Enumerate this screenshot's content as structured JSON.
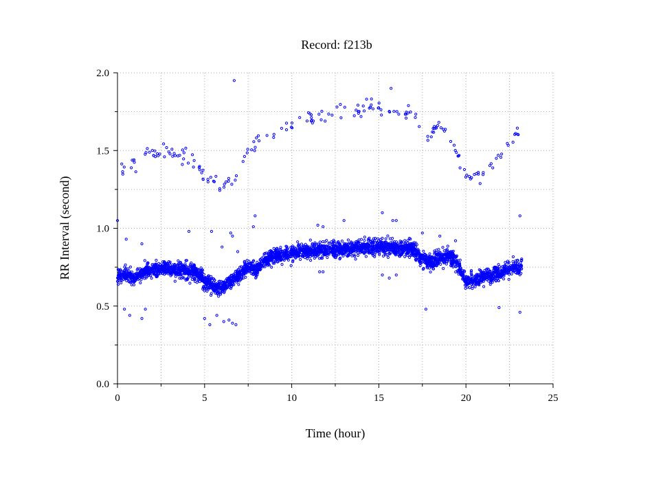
{
  "chart_data": {
    "type": "scatter",
    "title": "Record:  f213b",
    "xlabel": "Time (hour)",
    "ylabel": "RR Interval (second)",
    "xlim": [
      0,
      25
    ],
    "ylim": [
      0,
      2
    ],
    "x_ticks": [
      0,
      5,
      10,
      15,
      20,
      25
    ],
    "x_tick_labels": [
      "0",
      "5",
      "10",
      "15",
      "20",
      "25"
    ],
    "x_minor_ticks": [
      2.5,
      7.5,
      12.5,
      17.5,
      22.5
    ],
    "y_ticks": [
      0,
      0.5,
      1.0,
      1.5,
      2.0
    ],
    "y_tick_labels": [
      "0.0",
      "0.5",
      "1.0",
      "1.5",
      "2.0"
    ],
    "y_minor_ticks": [
      0.25,
      0.75,
      1.25,
      1.75
    ],
    "grid": true,
    "legend": "none",
    "marker_color": "#0000ff",
    "series": [
      {
        "trend": [
          [
            0.0,
            0.69
          ],
          [
            0.5,
            0.7
          ],
          [
            1.0,
            0.68
          ],
          [
            1.5,
            0.72
          ],
          [
            2.0,
            0.74
          ],
          [
            2.5,
            0.74
          ],
          [
            3.0,
            0.75
          ],
          [
            3.5,
            0.74
          ],
          [
            4.0,
            0.72
          ],
          [
            4.5,
            0.72
          ],
          [
            5.0,
            0.66
          ],
          [
            5.5,
            0.62
          ],
          [
            6.0,
            0.62
          ],
          [
            6.5,
            0.66
          ],
          [
            7.0,
            0.7
          ],
          [
            7.5,
            0.76
          ],
          [
            8.0,
            0.74
          ],
          [
            8.5,
            0.8
          ],
          [
            9.0,
            0.82
          ],
          [
            9.5,
            0.83
          ],
          [
            10.0,
            0.84
          ],
          [
            10.5,
            0.85
          ],
          [
            11.0,
            0.85
          ],
          [
            11.5,
            0.86
          ],
          [
            12.0,
            0.86
          ],
          [
            12.5,
            0.86
          ],
          [
            13.0,
            0.87
          ],
          [
            13.5,
            0.87
          ],
          [
            14.0,
            0.88
          ],
          [
            14.5,
            0.88
          ],
          [
            15.0,
            0.88
          ],
          [
            15.5,
            0.88
          ],
          [
            16.0,
            0.87
          ],
          [
            16.5,
            0.87
          ],
          [
            17.0,
            0.87
          ],
          [
            17.5,
            0.8
          ],
          [
            18.0,
            0.78
          ],
          [
            18.5,
            0.81
          ],
          [
            19.0,
            0.82
          ],
          [
            19.5,
            0.77
          ],
          [
            20.0,
            0.66
          ],
          [
            20.5,
            0.66
          ],
          [
            21.0,
            0.69
          ],
          [
            21.5,
            0.7
          ],
          [
            22.0,
            0.72
          ],
          [
            22.5,
            0.74
          ],
          [
            23.2,
            0.76
          ]
        ],
        "spread": 0.045,
        "upper_band": [
          [
            0.1,
            1.36
          ],
          [
            0.4,
            1.4
          ],
          [
            0.8,
            1.42
          ],
          [
            1.2,
            1.46
          ],
          [
            1.6,
            1.5
          ],
          [
            2.0,
            1.48
          ],
          [
            2.5,
            1.5
          ],
          [
            3.0,
            1.5
          ],
          [
            3.5,
            1.48
          ],
          [
            4.0,
            1.46
          ],
          [
            4.5,
            1.44
          ],
          [
            5.0,
            1.3
          ],
          [
            5.5,
            1.3
          ],
          [
            6.0,
            1.28
          ],
          [
            6.5,
            1.32
          ],
          [
            7.0,
            1.38
          ],
          [
            7.5,
            1.52
          ],
          [
            8.0,
            1.56
          ],
          [
            8.5,
            1.6
          ],
          [
            9.0,
            1.62
          ],
          [
            9.5,
            1.64
          ],
          [
            10.0,
            1.67
          ],
          [
            10.5,
            1.69
          ],
          [
            11.0,
            1.71
          ],
          [
            11.5,
            1.72
          ],
          [
            12.0,
            1.73
          ],
          [
            12.5,
            1.74
          ],
          [
            13.0,
            1.75
          ],
          [
            13.5,
            1.76
          ],
          [
            14.0,
            1.76
          ],
          [
            14.5,
            1.77
          ],
          [
            15.0,
            1.78
          ],
          [
            15.5,
            1.77
          ],
          [
            16.0,
            1.77
          ],
          [
            16.5,
            1.75
          ],
          [
            17.0,
            1.73
          ],
          [
            17.5,
            1.55
          ],
          [
            18.0,
            1.62
          ],
          [
            18.5,
            1.66
          ],
          [
            19.0,
            1.6
          ],
          [
            19.5,
            1.48
          ],
          [
            20.0,
            1.36
          ],
          [
            20.5,
            1.32
          ],
          [
            21.0,
            1.36
          ],
          [
            21.5,
            1.42
          ],
          [
            22.0,
            1.48
          ],
          [
            22.5,
            1.56
          ],
          [
            23.0,
            1.6
          ]
        ],
        "upper_spread": 0.05,
        "x_start": 0,
        "x_end": 23.2,
        "outliers": [
          [
            6.7,
            1.95
          ],
          [
            15.7,
            1.9
          ],
          [
            14.3,
            1.83
          ],
          [
            12.6,
            1.78
          ],
          [
            0.0,
            1.05
          ],
          [
            23.1,
            1.08
          ],
          [
            15.2,
            1.1
          ],
          [
            15.8,
            1.05
          ],
          [
            16.0,
            1.05
          ],
          [
            13.0,
            1.05
          ],
          [
            11.5,
            1.02
          ],
          [
            11.8,
            1.01
          ],
          [
            7.8,
            1.01
          ],
          [
            7.9,
            1.08
          ],
          [
            5.4,
            0.98
          ],
          [
            6.5,
            0.97
          ],
          [
            6.6,
            0.95
          ],
          [
            6.0,
            0.88
          ],
          [
            6.9,
            0.85
          ],
          [
            4.1,
            0.98
          ],
          [
            5.0,
            0.42
          ],
          [
            5.3,
            0.38
          ],
          [
            5.7,
            0.44
          ],
          [
            6.1,
            0.4
          ],
          [
            6.4,
            0.41
          ],
          [
            6.6,
            0.39
          ],
          [
            6.8,
            0.38
          ],
          [
            0.4,
            0.48
          ],
          [
            0.7,
            0.44
          ],
          [
            1.4,
            0.42
          ],
          [
            1.6,
            0.48
          ],
          [
            17.7,
            0.48
          ],
          [
            21.9,
            0.49
          ],
          [
            23.1,
            0.46
          ],
          [
            11.6,
            0.72
          ],
          [
            11.8,
            0.72
          ],
          [
            15.2,
            0.7
          ],
          [
            15.6,
            0.68
          ],
          [
            16.0,
            0.7
          ],
          [
            0.5,
            0.93
          ],
          [
            1.4,
            0.9
          ],
          [
            19.4,
            0.92
          ],
          [
            17.5,
            0.97
          ],
          [
            18.5,
            0.95
          ]
        ],
        "points": []
      }
    ]
  }
}
